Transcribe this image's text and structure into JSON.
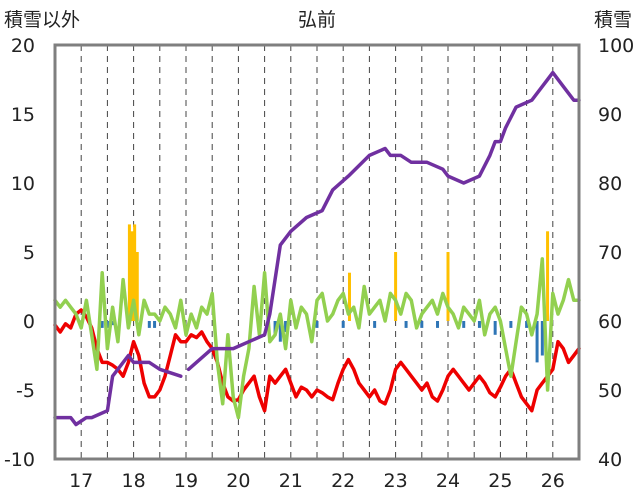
{
  "chart_data": {
    "type": "line",
    "title": "弘前",
    "ylabel_left": "積雪以外",
    "ylabel_right": "積雪",
    "x_categories": [
      "17",
      "18",
      "19",
      "20",
      "21",
      "22",
      "23",
      "24",
      "25",
      "26"
    ],
    "ylim_left": [
      -10,
      20
    ],
    "yticks_left": [
      "20",
      "15",
      "10",
      "5",
      "0",
      "-5",
      "-10"
    ],
    "ylim_right": [
      40,
      100
    ],
    "yticks_right": [
      "100",
      "90",
      "80",
      "70",
      "60",
      "50",
      "40"
    ],
    "grid": "vertical dashed at day boundaries",
    "colors": {
      "red": "#ee0000",
      "purple": "#7030a0",
      "green": "#92d050",
      "bar_blue": "#2e75b6",
      "bar_orange": "#ffc000",
      "frame": "#7f7f7f"
    },
    "series": [
      {
        "color": "red",
        "axis": "left",
        "x": [
          16.5,
          16.6,
          16.7,
          16.8,
          16.9,
          17.0,
          17.1,
          17.2,
          17.3,
          17.4,
          17.5,
          17.6,
          17.7,
          17.8,
          17.9,
          18.0,
          18.1,
          18.2,
          18.3,
          18.4,
          18.5,
          18.6,
          18.7,
          18.8,
          18.9,
          19.0,
          19.1,
          19.2,
          19.3,
          19.4,
          19.5,
          19.6,
          19.7,
          19.8,
          19.9,
          20.0,
          20.1,
          20.2,
          20.3,
          20.4,
          20.5,
          20.6,
          20.7,
          20.8,
          20.9,
          21.0,
          21.1,
          21.2,
          21.3,
          21.4,
          21.5,
          21.6,
          21.7,
          21.8,
          21.9,
          22.0,
          22.1,
          22.2,
          22.3,
          22.4,
          22.5,
          22.6,
          22.7,
          22.8,
          22.9,
          23.0,
          23.1,
          23.2,
          23.3,
          23.4,
          23.5,
          23.6,
          23.7,
          23.8,
          23.9,
          24.0,
          24.1,
          24.2,
          24.3,
          24.4,
          24.5,
          24.6,
          24.7,
          24.8,
          24.9,
          25.0,
          25.1,
          25.2,
          25.3,
          25.4,
          25.5,
          25.6,
          25.7,
          25.8,
          25.9,
          26.0,
          26.1,
          26.2,
          26.3,
          26.4,
          26.5
        ],
        "values": [
          -0.3,
          -0.8,
          -0.2,
          -0.5,
          0.5,
          0.8,
          0.3,
          -0.5,
          -2.0,
          -3.0,
          -3.0,
          -3.2,
          -3.5,
          -4.0,
          -3.0,
          -1.5,
          -2.5,
          -4.5,
          -5.5,
          -5.5,
          -5.0,
          -4.0,
          -2.5,
          -1.0,
          -1.5,
          -1.5,
          -1.0,
          -1.2,
          -0.8,
          -1.5,
          -2.0,
          -3.0,
          -4.5,
          -5.5,
          -5.8,
          -5.7,
          -5.0,
          -4.5,
          -4.0,
          -5.5,
          -6.5,
          -4.0,
          -4.5,
          -4.0,
          -3.5,
          -4.5,
          -5.5,
          -4.8,
          -5.0,
          -5.5,
          -5.0,
          -5.2,
          -5.5,
          -5.7,
          -4.5,
          -3.5,
          -2.8,
          -3.5,
          -4.5,
          -5.0,
          -5.5,
          -5.0,
          -5.8,
          -6.0,
          -5.0,
          -3.5,
          -3.0,
          -3.5,
          -4.0,
          -4.5,
          -5.0,
          -4.5,
          -5.5,
          -5.8,
          -5.0,
          -4.0,
          -3.5,
          -4.0,
          -4.5,
          -5.0,
          -4.5,
          -4.0,
          -4.5,
          -5.2,
          -5.5,
          -4.8,
          -4.0,
          -3.5,
          -4.5,
          -5.5,
          -6.0,
          -6.5,
          -5.0,
          -4.5,
          -4.0,
          -3.5,
          -1.5,
          -2.0,
          -3.0,
          -2.5,
          -2.0
        ]
      },
      {
        "color": "green",
        "axis": "left",
        "x": [
          16.5,
          16.6,
          16.7,
          16.8,
          16.9,
          17.0,
          17.1,
          17.2,
          17.3,
          17.4,
          17.5,
          17.6,
          17.7,
          17.8,
          17.9,
          18.0,
          18.1,
          18.2,
          18.3,
          18.4,
          18.5,
          18.6,
          18.7,
          18.8,
          18.9,
          19.0,
          19.1,
          19.2,
          19.3,
          19.4,
          19.5,
          19.6,
          19.7,
          19.8,
          19.9,
          20.0,
          20.1,
          20.2,
          20.3,
          20.4,
          20.5,
          20.6,
          20.7,
          20.8,
          20.9,
          21.0,
          21.1,
          21.2,
          21.3,
          21.4,
          21.5,
          21.6,
          21.7,
          21.8,
          21.9,
          22.0,
          22.1,
          22.2,
          22.3,
          22.4,
          22.5,
          22.6,
          22.7,
          22.8,
          22.9,
          23.0,
          23.1,
          23.2,
          23.3,
          23.4,
          23.5,
          23.6,
          23.7,
          23.8,
          23.9,
          24.0,
          24.1,
          24.2,
          24.3,
          24.4,
          24.5,
          24.6,
          24.7,
          24.8,
          24.9,
          25.0,
          25.1,
          25.2,
          25.3,
          25.4,
          25.5,
          25.6,
          25.7,
          25.8,
          25.9,
          26.0,
          26.1,
          26.2,
          26.3,
          26.4,
          26.5
        ],
        "values": [
          1.5,
          1.0,
          1.5,
          1.0,
          0.5,
          -0.5,
          1.5,
          -1.0,
          -3.5,
          3.5,
          -2.0,
          1.0,
          -1.5,
          3.0,
          -0.5,
          1.5,
          -1.0,
          1.5,
          0.5,
          0.5,
          0.0,
          1.0,
          0.5,
          -0.5,
          1.5,
          -1.0,
          0.5,
          -0.5,
          1.0,
          0.5,
          2.0,
          -3.0,
          -6.0,
          -1.0,
          -5.5,
          -7.0,
          -4.0,
          -2.0,
          2.5,
          -1.0,
          3.5,
          -1.5,
          -1.0,
          0.5,
          -2.0,
          1.5,
          -0.5,
          1.0,
          0.5,
          -1.5,
          1.5,
          2.0,
          0.0,
          0.5,
          1.5,
          2.0,
          0.5,
          1.0,
          -0.5,
          2.5,
          0.5,
          1.0,
          1.5,
          0.0,
          2.0,
          1.5,
          0.5,
          2.0,
          1.5,
          -0.5,
          0.5,
          1.0,
          1.5,
          0.5,
          2.0,
          1.0,
          0.5,
          -0.5,
          1.0,
          0.5,
          0.0,
          1.5,
          -1.0,
          0.5,
          1.0,
          0.0,
          -2.0,
          -4.0,
          -1.5,
          1.0,
          0.5,
          -1.0,
          0.5,
          4.5,
          -5.0,
          2.0,
          0.5,
          1.5,
          3.0,
          1.5,
          1.5
        ]
      },
      {
        "color": "purple",
        "axis": "right",
        "segments": [
          {
            "x": [
              16.5,
              16.8,
              16.9,
              17.1,
              17.2,
              17.5,
              17.6,
              17.9,
              18.0,
              18.3,
              18.5,
              18.9
            ],
            "values": [
              46,
              46,
              45,
              46,
              46,
              47,
              52,
              55,
              54,
              54,
              53,
              52
            ]
          },
          {
            "x": [
              19.05,
              19.5,
              19.9,
              20.2,
              20.5,
              20.6,
              20.8,
              21.0,
              21.3,
              21.6,
              21.8,
              22.1,
              22.5,
              22.8,
              22.9,
              23.1,
              23.3,
              23.6,
              23.9,
              24.0,
              24.3,
              24.6,
              24.8,
              24.9,
              25.0,
              25.1,
              25.3,
              25.6,
              25.8,
              25.9,
              26.0,
              26.2,
              26.4,
              26.5
            ],
            "values": [
              53,
              56,
              56,
              57,
              58,
              61,
              71,
              73,
              75,
              76,
              79,
              81,
              84,
              85,
              84,
              84,
              83,
              83,
              82,
              81,
              80,
              81,
              84,
              86,
              86,
              88,
              91,
              92,
              94,
              95,
              96,
              94,
              92,
              92
            ]
          }
        ]
      }
    ],
    "bars": [
      {
        "color": "bar_orange",
        "axis": "left",
        "x": [
          17.92,
          17.97,
          18.02,
          18.07,
          22.12,
          23.0,
          24.0,
          25.9
        ],
        "values": [
          7.0,
          6.5,
          7.0,
          5.0,
          3.5,
          5.0,
          5.0,
          6.5
        ]
      },
      {
        "color": "bar_blue",
        "axis": "left",
        "x": [
          17.4,
          17.5,
          17.6,
          18.3,
          18.4,
          20.7,
          20.8,
          20.9,
          21.5,
          22.0,
          22.3,
          22.6,
          23.2,
          23.5,
          23.8,
          24.3,
          24.6,
          24.9,
          25.2,
          25.5,
          25.7,
          25.8
        ],
        "values": [
          -0.5,
          -0.5,
          -0.3,
          -0.5,
          -0.5,
          -1.0,
          -1.5,
          -0.8,
          -0.5,
          -0.5,
          -0.5,
          -0.5,
          -0.5,
          -0.5,
          -0.5,
          -0.5,
          -0.5,
          -1.0,
          -0.5,
          -0.5,
          -3.0,
          -2.5
        ]
      }
    ]
  }
}
